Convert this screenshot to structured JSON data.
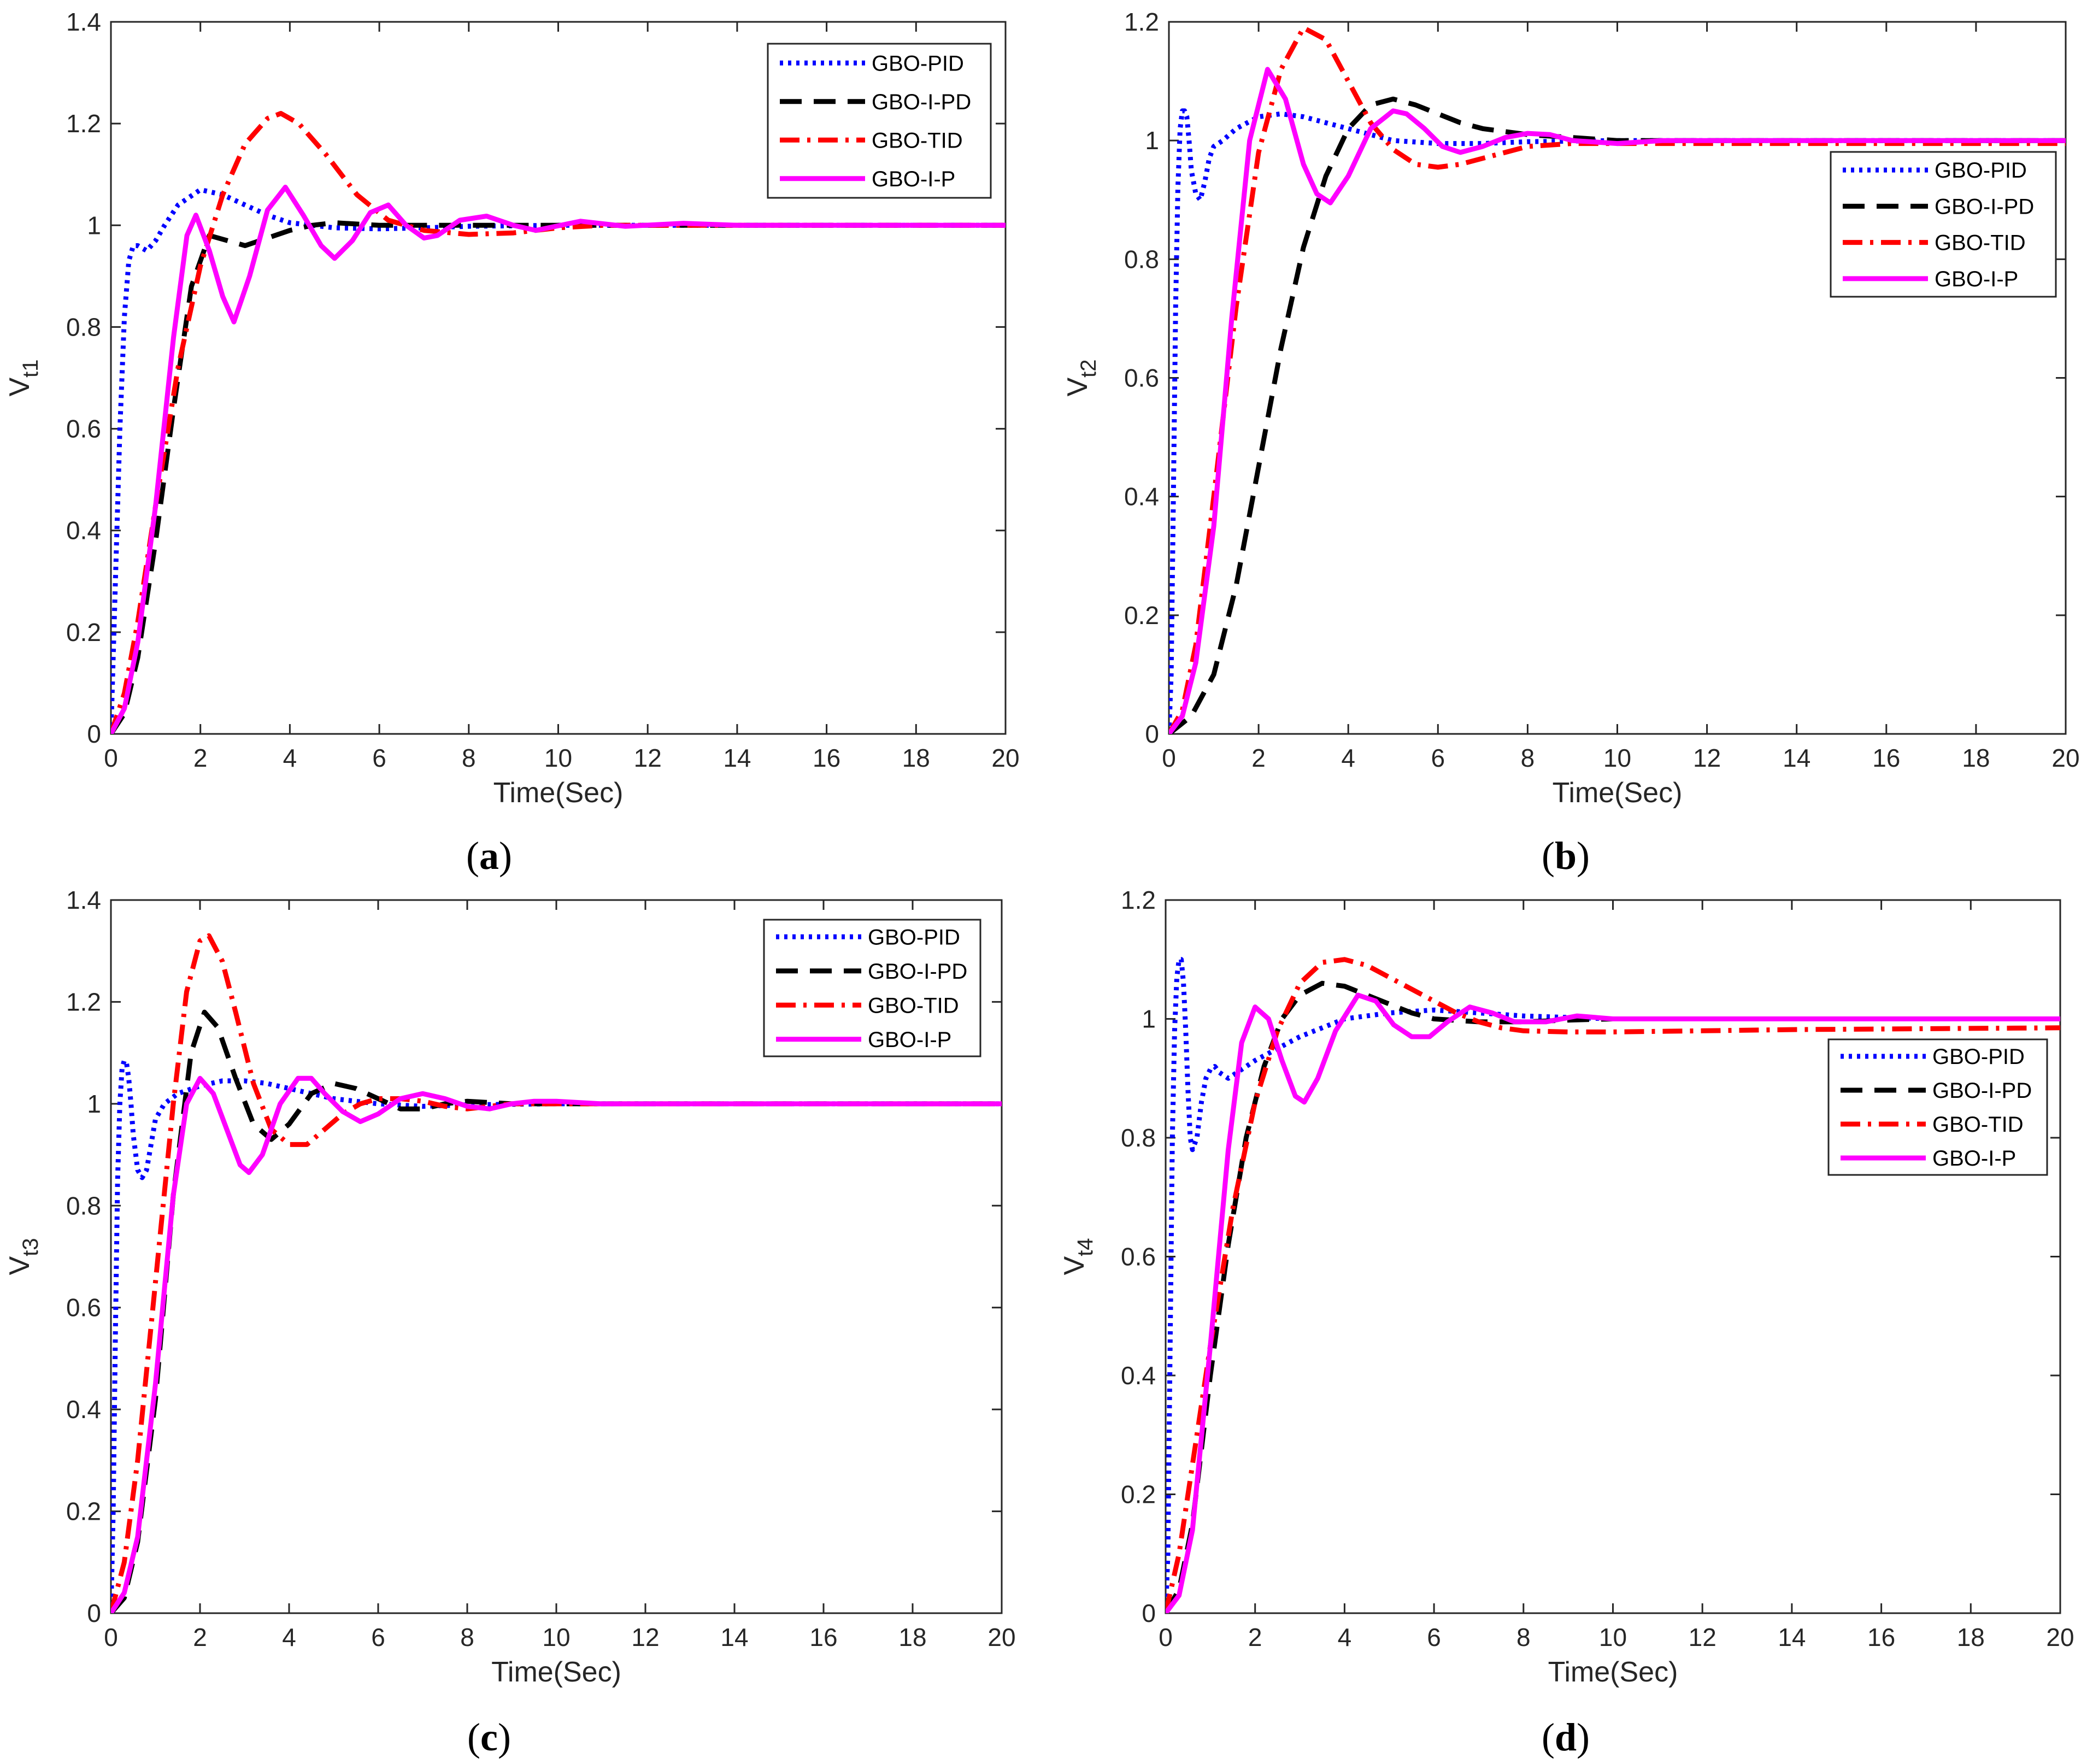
{
  "figure": {
    "panels": [
      "a",
      "b",
      "c",
      "d"
    ]
  },
  "chart_data": [
    {
      "type": "line",
      "panel": "a",
      "caption_open": "(",
      "caption_letter": "a",
      "caption_close": ")",
      "xlabel": "Time(Sec)",
      "ylabel_main": "V",
      "ylabel_sub": "t1",
      "xlim": [
        0,
        20
      ],
      "ylim": [
        0,
        1.4
      ],
      "xticks": [
        0,
        2,
        4,
        6,
        8,
        10,
        12,
        14,
        16,
        18,
        20
      ],
      "yticks": [
        0,
        0.2,
        0.4,
        0.6,
        0.8,
        1,
        1.2,
        1.4
      ],
      "legend_position": "top-right",
      "series": [
        {
          "name": "GBO-PID",
          "color": "#0000ff",
          "style": "dotted",
          "x": [
            0,
            0.1,
            0.2,
            0.3,
            0.4,
            0.5,
            0.6,
            0.7,
            0.8,
            1,
            1.2,
            1.5,
            2,
            2.5,
            3,
            3.5,
            4,
            5,
            6,
            7,
            8,
            10,
            12,
            15,
            20
          ],
          "y": [
            0,
            0.3,
            0.6,
            0.82,
            0.93,
            0.96,
            0.96,
            0.955,
            0.95,
            0.97,
            1.0,
            1.04,
            1.07,
            1.06,
            1.04,
            1.02,
            1.005,
            0.995,
            0.993,
            0.995,
            0.998,
            1.0,
            1.0,
            1.0,
            1.0
          ]
        },
        {
          "name": "GBO-I-PD",
          "color": "#000000",
          "style": "dashed",
          "x": [
            0,
            0.3,
            0.6,
            1,
            1.4,
            1.8,
            2.2,
            2.6,
            3,
            3.5,
            4,
            4.5,
            5,
            6,
            7,
            8,
            10,
            12,
            15,
            20
          ],
          "y": [
            0,
            0.04,
            0.15,
            0.38,
            0.64,
            0.88,
            0.98,
            0.97,
            0.96,
            0.975,
            0.99,
            1.0,
            1.005,
            1.0,
            1.0,
            1.0,
            1.0,
            1.0,
            1.0,
            1.0
          ]
        },
        {
          "name": "GBO-TID",
          "color": "#ff0000",
          "style": "dashdot",
          "x": [
            0,
            0.3,
            0.6,
            1,
            1.5,
            2,
            2.5,
            3,
            3.5,
            3.8,
            4.2,
            4.8,
            5.5,
            6.2,
            7,
            8,
            9,
            10,
            11,
            12,
            14,
            20
          ],
          "y": [
            0,
            0.08,
            0.22,
            0.45,
            0.72,
            0.92,
            1.06,
            1.16,
            1.21,
            1.22,
            1.2,
            1.14,
            1.06,
            1.01,
            0.99,
            0.982,
            0.985,
            0.995,
            1.0,
            1.0,
            1.0,
            1.0
          ]
        },
        {
          "name": "GBO-I-P",
          "color": "#ff00ff",
          "style": "solid",
          "x": [
            0,
            0.3,
            0.6,
            1,
            1.4,
            1.7,
            1.9,
            2.2,
            2.5,
            2.75,
            3.1,
            3.5,
            3.9,
            4.3,
            4.7,
            5,
            5.4,
            5.8,
            6.2,
            6.6,
            7,
            7.3,
            7.8,
            8.4,
            9,
            9.5,
            10.5,
            11.5,
            12.8,
            14,
            20
          ],
          "y": [
            0,
            0.05,
            0.18,
            0.45,
            0.78,
            0.98,
            1.02,
            0.95,
            0.86,
            0.81,
            0.9,
            1.03,
            1.075,
            1.02,
            0.96,
            0.935,
            0.97,
            1.025,
            1.04,
            1.0,
            0.975,
            0.98,
            1.01,
            1.018,
            1.0,
            0.99,
            1.008,
            0.998,
            1.004,
            1.0,
            1.0
          ]
        }
      ]
    },
    {
      "type": "line",
      "panel": "b",
      "caption_open": "(",
      "caption_letter": "b",
      "caption_close": ")",
      "xlabel": "Time(Sec)",
      "ylabel_main": "V",
      "ylabel_sub": "t2",
      "xlim": [
        0,
        20
      ],
      "ylim": [
        0,
        1.2
      ],
      "xticks": [
        0,
        2,
        4,
        6,
        8,
        10,
        12,
        14,
        16,
        18,
        20
      ],
      "yticks": [
        0,
        0.2,
        0.4,
        0.6,
        0.8,
        1,
        1.2
      ],
      "legend_position": "right",
      "series": [
        {
          "name": "GBO-PID",
          "color": "#0000ff",
          "style": "dotted",
          "x": [
            0,
            0.05,
            0.1,
            0.15,
            0.2,
            0.25,
            0.3,
            0.35,
            0.4,
            0.45,
            0.5,
            0.6,
            0.7,
            0.8,
            0.9,
            1.0,
            1.2,
            1.5,
            2,
            2.5,
            3,
            3.5,
            4,
            5,
            6,
            7,
            8,
            10,
            12,
            20
          ],
          "y": [
            0,
            0.1,
            0.4,
            0.72,
            0.92,
            1.02,
            1.05,
            1.05,
            1.04,
            1.0,
            0.95,
            0.91,
            0.9,
            0.93,
            0.97,
            0.99,
            1.0,
            1.02,
            1.04,
            1.045,
            1.04,
            1.03,
            1.02,
            1.0,
            0.995,
            0.995,
            0.998,
            1.0,
            1.0,
            1.0
          ]
        },
        {
          "name": "GBO-I-PD",
          "color": "#000000",
          "style": "dashed",
          "x": [
            0,
            0.5,
            1,
            1.5,
            2,
            2.5,
            3,
            3.5,
            4,
            4.5,
            5,
            5.5,
            6,
            6.5,
            7,
            8,
            9,
            10,
            12,
            20
          ],
          "y": [
            0,
            0.03,
            0.1,
            0.25,
            0.45,
            0.65,
            0.82,
            0.94,
            1.02,
            1.06,
            1.07,
            1.06,
            1.045,
            1.03,
            1.02,
            1.01,
            1.005,
            1.0,
            1.0,
            1.0
          ]
        },
        {
          "name": "GBO-TID",
          "color": "#ff0000",
          "style": "dashdot",
          "x": [
            0,
            0.3,
            0.6,
            1,
            1.5,
            2,
            2.5,
            3,
            3.5,
            4,
            4.5,
            5,
            5.5,
            6,
            6.5,
            7,
            7.5,
            8,
            9,
            10,
            11,
            12,
            20
          ],
          "y": [
            0,
            0.04,
            0.15,
            0.4,
            0.72,
            0.98,
            1.12,
            1.19,
            1.17,
            1.1,
            1.03,
            0.985,
            0.96,
            0.955,
            0.96,
            0.97,
            0.98,
            0.99,
            0.995,
            0.995,
            0.995,
            0.995,
            0.995
          ]
        },
        {
          "name": "GBO-I-P",
          "color": "#ff00ff",
          "style": "solid",
          "x": [
            0,
            0.3,
            0.6,
            1,
            1.4,
            1.8,
            2.2,
            2.6,
            3.0,
            3.3,
            3.6,
            4.0,
            4.5,
            5.0,
            5.3,
            5.7,
            6.1,
            6.5,
            7,
            7.5,
            8,
            8.5,
            9,
            10,
            11,
            20
          ],
          "y": [
            0,
            0.03,
            0.12,
            0.35,
            0.7,
            1.0,
            1.12,
            1.07,
            0.96,
            0.91,
            0.895,
            0.94,
            1.02,
            1.05,
            1.045,
            1.02,
            0.99,
            0.98,
            0.99,
            1.005,
            1.012,
            1.01,
            1.0,
            0.995,
            1.0,
            1.0
          ]
        }
      ]
    },
    {
      "type": "line",
      "panel": "c",
      "caption_open": "(",
      "caption_letter": "c",
      "caption_close": ")",
      "xlabel": "Time(Sec)",
      "ylabel_main": "V",
      "ylabel_sub": "t3",
      "xlim": [
        0,
        20
      ],
      "ylim": [
        0,
        1.4
      ],
      "xticks": [
        0,
        2,
        4,
        6,
        8,
        10,
        12,
        14,
        16,
        18,
        20
      ],
      "yticks": [
        0,
        0.2,
        0.4,
        0.6,
        0.8,
        1,
        1.2,
        1.4
      ],
      "legend_position": "top-right",
      "series": [
        {
          "name": "GBO-PID",
          "color": "#0000ff",
          "style": "dotted",
          "x": [
            0,
            0.05,
            0.1,
            0.15,
            0.2,
            0.25,
            0.3,
            0.35,
            0.4,
            0.45,
            0.5,
            0.6,
            0.7,
            0.8,
            0.9,
            1.0,
            1.2,
            1.5,
            2,
            2.5,
            3,
            3.5,
            4,
            5,
            6,
            7,
            8,
            10,
            12,
            20
          ],
          "y": [
            0,
            0.2,
            0.55,
            0.85,
            1.0,
            1.07,
            1.085,
            1.08,
            1.05,
            1.0,
            0.94,
            0.87,
            0.855,
            0.87,
            0.92,
            0.97,
            1.0,
            1.02,
            1.035,
            1.045,
            1.045,
            1.04,
            1.03,
            1.01,
            1.0,
            0.995,
            0.998,
            1.0,
            1.0,
            1.0
          ]
        },
        {
          "name": "GBO-I-PD",
          "color": "#000000",
          "style": "dashed",
          "x": [
            0,
            0.3,
            0.6,
            1,
            1.4,
            1.8,
            2.1,
            2.4,
            2.8,
            3.2,
            3.6,
            4.0,
            4.5,
            5,
            5.5,
            6,
            6.5,
            7,
            7.5,
            8,
            9,
            10,
            20
          ],
          "y": [
            0,
            0.03,
            0.14,
            0.42,
            0.82,
            1.1,
            1.18,
            1.15,
            1.05,
            0.96,
            0.93,
            0.96,
            1.02,
            1.04,
            1.03,
            1.01,
            0.99,
            0.99,
            1.0,
            1.005,
            1.0,
            1.0,
            1.0
          ]
        },
        {
          "name": "GBO-TID",
          "color": "#ff0000",
          "style": "dashdot",
          "x": [
            0,
            0.3,
            0.6,
            1,
            1.4,
            1.7,
            2.0,
            2.2,
            2.5,
            2.8,
            3.2,
            3.6,
            4.0,
            4.4,
            4.8,
            5.2,
            5.6,
            6,
            6.5,
            7,
            7.5,
            8,
            8.5,
            9,
            10,
            20
          ],
          "y": [
            0,
            0.1,
            0.3,
            0.65,
            1.0,
            1.22,
            1.32,
            1.33,
            1.28,
            1.18,
            1.04,
            0.95,
            0.92,
            0.92,
            0.95,
            0.98,
            1.0,
            1.01,
            1.01,
            1.005,
            0.995,
            0.99,
            0.995,
            1.0,
            1.0,
            1.0
          ]
        },
        {
          "name": "GBO-I-P",
          "color": "#ff00ff",
          "style": "solid",
          "x": [
            0,
            0.3,
            0.6,
            1,
            1.4,
            1.7,
            2.0,
            2.3,
            2.6,
            2.9,
            3.1,
            3.4,
            3.8,
            4.2,
            4.5,
            4.8,
            5.2,
            5.6,
            6,
            6.5,
            7,
            7.5,
            8,
            8.5,
            9,
            9.5,
            10,
            11,
            20
          ],
          "y": [
            0,
            0.04,
            0.15,
            0.45,
            0.82,
            1.0,
            1.05,
            1.02,
            0.95,
            0.88,
            0.865,
            0.9,
            1.0,
            1.05,
            1.05,
            1.02,
            0.985,
            0.965,
            0.98,
            1.01,
            1.02,
            1.01,
            0.995,
            0.99,
            1.0,
            1.005,
            1.005,
            1.0,
            1.0
          ]
        }
      ]
    },
    {
      "type": "line",
      "panel": "d",
      "caption_open": "(",
      "caption_letter": "d",
      "caption_close": ")",
      "xlabel": "Time(Sec)",
      "ylabel_main": "V",
      "ylabel_sub": "t4",
      "xlim": [
        0,
        20
      ],
      "ylim": [
        0,
        1.2
      ],
      "xticks": [
        0,
        2,
        4,
        6,
        8,
        10,
        12,
        14,
        16,
        18,
        20
      ],
      "yticks": [
        0,
        0.2,
        0.4,
        0.6,
        0.8,
        1,
        1.2
      ],
      "legend_position": "right",
      "series": [
        {
          "name": "GBO-PID",
          "color": "#0000ff",
          "style": "dotted",
          "x": [
            0,
            0.05,
            0.1,
            0.15,
            0.2,
            0.25,
            0.3,
            0.35,
            0.4,
            0.45,
            0.5,
            0.55,
            0.6,
            0.7,
            0.8,
            0.9,
            1.0,
            1.1,
            1.2,
            1.4,
            1.6,
            2,
            3,
            4,
            5,
            6,
            7,
            8,
            10,
            20
          ],
          "y": [
            0,
            0.1,
            0.45,
            0.8,
            0.98,
            1.07,
            1.1,
            1.1,
            1.06,
            0.98,
            0.88,
            0.8,
            0.78,
            0.8,
            0.86,
            0.9,
            0.915,
            0.92,
            0.91,
            0.9,
            0.91,
            0.93,
            0.97,
            1.0,
            1.01,
            1.015,
            1.01,
            1.005,
            1.0,
            1.0
          ]
        },
        {
          "name": "GBO-I-PD",
          "color": "#000000",
          "style": "dashed",
          "x": [
            0,
            0.3,
            0.6,
            1,
            1.4,
            1.8,
            2.2,
            2.6,
            3.0,
            3.5,
            4,
            4.5,
            5,
            5.5,
            6,
            7,
            8,
            9,
            10,
            12,
            20
          ],
          "y": [
            0,
            0.04,
            0.15,
            0.4,
            0.62,
            0.8,
            0.92,
            1.0,
            1.04,
            1.06,
            1.055,
            1.04,
            1.025,
            1.01,
            1.0,
            0.995,
            0.995,
            0.998,
            1.0,
            1.0,
            1.0
          ]
        },
        {
          "name": "GBO-TID",
          "color": "#ff0000",
          "style": "dashdot",
          "x": [
            0,
            0.3,
            0.6,
            1,
            1.5,
            2,
            2.5,
            3,
            3.5,
            4,
            4.5,
            5,
            5.5,
            6,
            6.5,
            7,
            7.5,
            8,
            9,
            10,
            12,
            14,
            20
          ],
          "y": [
            0,
            0.1,
            0.25,
            0.45,
            0.68,
            0.86,
            0.98,
            1.06,
            1.095,
            1.1,
            1.09,
            1.07,
            1.05,
            1.03,
            1.01,
            0.995,
            0.985,
            0.98,
            0.978,
            0.978,
            0.98,
            0.982,
            0.985
          ]
        },
        {
          "name": "GBO-I-P",
          "color": "#ff00ff",
          "style": "solid",
          "x": [
            0,
            0.3,
            0.6,
            1,
            1.4,
            1.7,
            2.0,
            2.3,
            2.6,
            2.9,
            3.1,
            3.4,
            3.8,
            4.3,
            4.7,
            5.1,
            5.5,
            5.9,
            6.3,
            6.8,
            7.3,
            7.8,
            8.5,
            9.2,
            10,
            11,
            20
          ],
          "y": [
            0,
            0.03,
            0.14,
            0.45,
            0.78,
            0.96,
            1.02,
            1.0,
            0.93,
            0.87,
            0.86,
            0.9,
            0.98,
            1.04,
            1.03,
            0.99,
            0.97,
            0.97,
            0.995,
            1.02,
            1.01,
            0.995,
            0.995,
            1.005,
            1.0,
            1.0,
            1.0
          ]
        }
      ]
    }
  ]
}
